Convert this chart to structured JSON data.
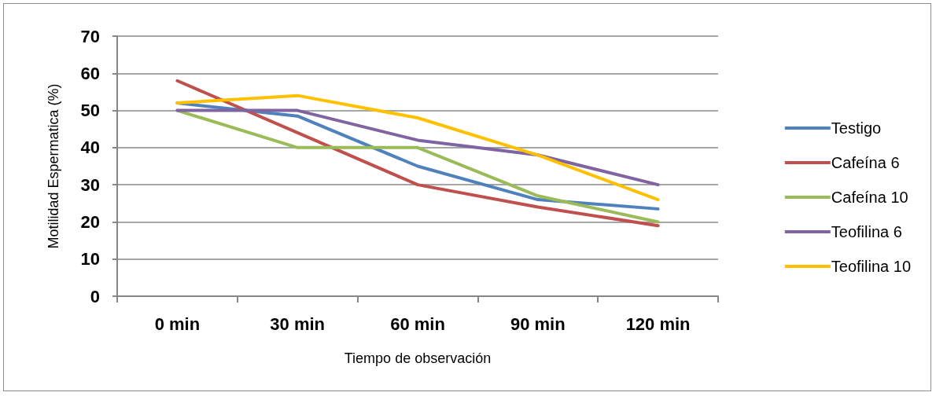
{
  "chart_data": {
    "type": "line",
    "xlabel": "Tiempo de observación",
    "ylabel": "Motilidad Espermatica (%)",
    "categories": [
      "0 min",
      "30 min",
      "60 min",
      "90 min",
      "120 min"
    ],
    "series": [
      {
        "name": "Testigo",
        "color": "#4f81bd",
        "values": [
          52,
          48.5,
          35,
          26,
          23.5
        ]
      },
      {
        "name": "Cafeína 6",
        "color": "#c0504d",
        "values": [
          58,
          44,
          30,
          24,
          19
        ]
      },
      {
        "name": "Cafeína 10",
        "color": "#9bbb59",
        "values": [
          50,
          40,
          40,
          27,
          20
        ]
      },
      {
        "name": "Teofilina 6",
        "color": "#8064a2",
        "values": [
          50,
          50,
          42,
          38,
          30
        ]
      },
      {
        "name": "Teofilina 10",
        "color": "#ffc000",
        "values": [
          52,
          54,
          48,
          38,
          26
        ]
      }
    ],
    "ylim": [
      0,
      70
    ],
    "yticks": [
      0,
      10,
      20,
      30,
      40,
      50,
      60,
      70
    ],
    "grid": "y",
    "legend": "right",
    "marker": "none",
    "line_style": "solid"
  }
}
